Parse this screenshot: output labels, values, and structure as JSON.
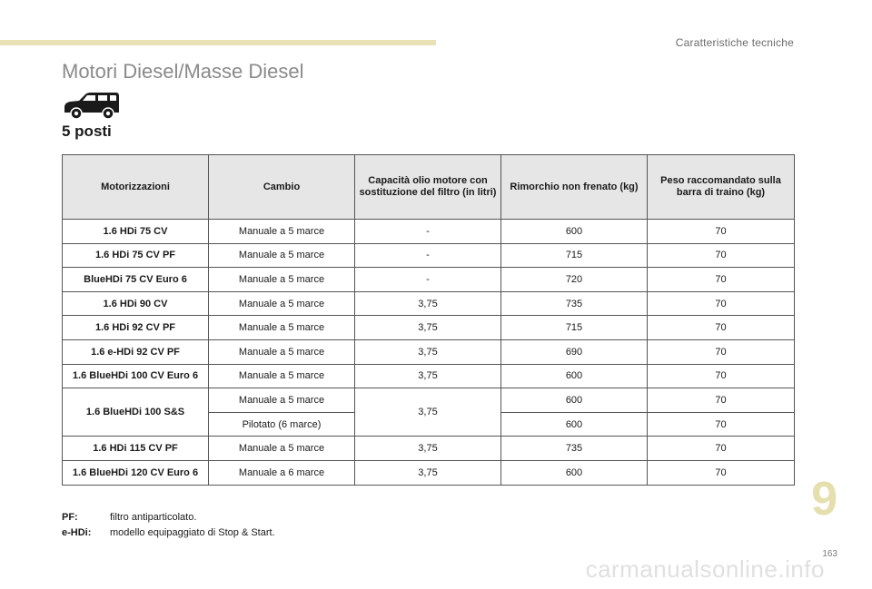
{
  "header": {
    "section": "Caratteristiche tecniche"
  },
  "title": "Motori Diesel/Masse Diesel",
  "icon": "car-side-icon",
  "seats_label": "5 posti",
  "table": {
    "headers": [
      "Motorizzazioni",
      "Cambio",
      "Capacità olio motore con sostituzione del filtro (in litri)",
      "Rimorchio non frenato (kg)",
      "Peso raccomandato sulla barra di traino (kg)"
    ],
    "rows": [
      {
        "engine": "1.6 HDi 75 CV",
        "gearbox": "Manuale a 5 marce",
        "oil": "-",
        "trailer": "600",
        "towbar": "70"
      },
      {
        "engine": "1.6 HDi 75 CV PF",
        "gearbox": "Manuale a 5 marce",
        "oil": "-",
        "trailer": "715",
        "towbar": "70"
      },
      {
        "engine": "BlueHDi 75 CV Euro 6",
        "gearbox": "Manuale a 5 marce",
        "oil": "-",
        "trailer": "720",
        "towbar": "70"
      },
      {
        "engine": "1.6 HDi 90 CV",
        "gearbox": "Manuale a 5 marce",
        "oil": "3,75",
        "trailer": "735",
        "towbar": "70"
      },
      {
        "engine": "1.6 HDi 92 CV PF",
        "gearbox": "Manuale a 5 marce",
        "oil": "3,75",
        "trailer": "715",
        "towbar": "70"
      },
      {
        "engine": "1.6 e-HDi 92 CV PF",
        "gearbox": "Manuale a 5 marce",
        "oil": "3,75",
        "trailer": "690",
        "towbar": "70"
      },
      {
        "engine": "1.6 BlueHDi 100 CV Euro 6",
        "gearbox": "Manuale a 5 marce",
        "oil": "3,75",
        "trailer": "600",
        "towbar": "70"
      },
      {
        "engine": "1.6 BlueHDi 100 S&S",
        "gearbox": "Manuale a 5 marce",
        "oil": "3,75",
        "trailer": "600",
        "towbar": "70"
      },
      {
        "gearbox": "Pilotato (6 marce)",
        "trailer": "600",
        "towbar": "70"
      },
      {
        "engine": "1.6 HDi 115 CV PF",
        "gearbox": "Manuale a 5 marce",
        "oil": "3,75",
        "trailer": "735",
        "towbar": "70"
      },
      {
        "engine": "1.6 BlueHDi 120 CV Euro 6",
        "gearbox": "Manuale a 6 marce",
        "oil": "3,75",
        "trailer": "600",
        "towbar": "70"
      }
    ]
  },
  "notes": [
    {
      "term": "PF:",
      "text": "filtro antiparticolato."
    },
    {
      "term": "e-HDi:",
      "text": "modello equipaggiato di Stop & Start."
    }
  ],
  "chapter_number": "9",
  "page_number": "163",
  "watermark": "carmanualsonline.info"
}
